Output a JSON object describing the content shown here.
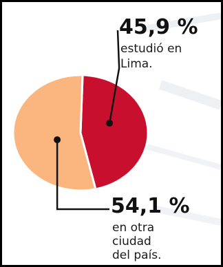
{
  "chart_data": {
    "type": "pie",
    "slices": [
      {
        "value": 45.9,
        "percent_label": "45,9 %",
        "desc_lines": [
          "estudió en",
          "Lima."
        ],
        "color": "#c8102e"
      },
      {
        "value": 54.1,
        "percent_label": "54,1 %",
        "desc_lines": [
          "en otra",
          "ciudad",
          "del país."
        ],
        "color": "#fbb57f"
      }
    ],
    "leader_color": "#111111",
    "stroke_color": "#ffffff"
  }
}
